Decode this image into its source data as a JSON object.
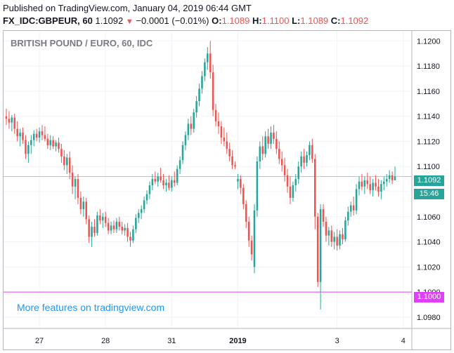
{
  "header": {
    "published": "Published on TradingView.com, January 04, 2019 06:44 GMT",
    "symbol": "FX_IDC:GBPEUR, 60",
    "last": "1.1092",
    "change_arrow": "▼",
    "change": "−0.0001 (−0.01%)",
    "open_label": "O:",
    "open": "1.1089",
    "high_label": "H:",
    "high": "1.1100",
    "low_label": "L:",
    "low": "1.1089",
    "close_label": "C:",
    "close": "1.1092"
  },
  "watermark": "More features on tradingview.com",
  "price_tags": {
    "last": "1.1092",
    "countdown": "15:46",
    "level": "1.1000"
  },
  "colors": {
    "up": "#26a69a",
    "down": "#ef5350",
    "last_line": "#26a69a",
    "level_line": "#e040fb",
    "grid": "#f0f3fa",
    "axis_text": "#131722"
  },
  "chart_data": {
    "type": "candlestick",
    "title": "BRITISH POUND / EURO, 60, IDC",
    "ylim": [
      1.0971,
      1.1208
    ],
    "y_ticks": [
      "1.1200",
      "1.1180",
      "1.1160",
      "1.1140",
      "1.1120",
      "1.1100",
      "1.1080",
      "1.1060",
      "1.1040",
      "1.1020",
      "1.1000",
      "1.0980"
    ],
    "x_ticks": [
      {
        "label": "27",
        "i": 12,
        "bold": false
      },
      {
        "label": "28",
        "i": 36,
        "bold": false
      },
      {
        "label": "31",
        "i": 60,
        "bold": false
      },
      {
        "label": "2019",
        "i": 84,
        "bold": true
      },
      {
        "label": "3",
        "i": 120,
        "bold": false
      },
      {
        "label": "4",
        "i": 144,
        "bold": false
      }
    ],
    "last_price": 1.1092,
    "level_line": 1.1,
    "ohlc": [
      [
        1.114,
        1.1146,
        1.1133,
        1.1138
      ],
      [
        1.1138,
        1.1144,
        1.113,
        1.1135
      ],
      [
        1.1135,
        1.1141,
        1.1128,
        1.1139
      ],
      [
        1.1139,
        1.1142,
        1.1126,
        1.113
      ],
      [
        1.113,
        1.1136,
        1.112,
        1.1124
      ],
      [
        1.1124,
        1.113,
        1.1116,
        1.1127
      ],
      [
        1.1127,
        1.1131,
        1.1118,
        1.1121
      ],
      [
        1.1121,
        1.1125,
        1.1106,
        1.111
      ],
      [
        1.111,
        1.112,
        1.1103,
        1.1117
      ],
      [
        1.1117,
        1.1125,
        1.111,
        1.1121
      ],
      [
        1.1121,
        1.1129,
        1.1116,
        1.1126
      ],
      [
        1.1126,
        1.113,
        1.112,
        1.1123
      ],
      [
        1.1123,
        1.1131,
        1.1119,
        1.1128
      ],
      [
        1.1128,
        1.1133,
        1.1121,
        1.1125
      ],
      [
        1.1125,
        1.1132,
        1.112,
        1.1122
      ],
      [
        1.1122,
        1.1126,
        1.1114,
        1.1117
      ],
      [
        1.1117,
        1.1125,
        1.1113,
        1.1121
      ],
      [
        1.1121,
        1.1124,
        1.1114,
        1.1116
      ],
      [
        1.1116,
        1.1121,
        1.1112,
        1.1119
      ],
      [
        1.1119,
        1.1123,
        1.1111,
        1.1114
      ],
      [
        1.1114,
        1.1118,
        1.1103,
        1.1108
      ],
      [
        1.1108,
        1.1113,
        1.1097,
        1.1101
      ],
      [
        1.1101,
        1.111,
        1.1094,
        1.1107
      ],
      [
        1.1107,
        1.1112,
        1.109,
        1.1095
      ],
      [
        1.1095,
        1.1101,
        1.1078,
        1.1084
      ],
      [
        1.1084,
        1.1092,
        1.1074,
        1.109
      ],
      [
        1.109,
        1.1094,
        1.107,
        1.1075
      ],
      [
        1.1075,
        1.108,
        1.1062,
        1.1066
      ],
      [
        1.1066,
        1.1076,
        1.106,
        1.1072
      ],
      [
        1.1072,
        1.1075,
        1.1054,
        1.1058
      ],
      [
        1.1058,
        1.1061,
        1.1039,
        1.1044
      ],
      [
        1.1044,
        1.1056,
        1.1036,
        1.1052
      ],
      [
        1.1052,
        1.1058,
        1.1044,
        1.1047
      ],
      [
        1.1047,
        1.1064,
        1.1045,
        1.1061
      ],
      [
        1.1061,
        1.1066,
        1.1054,
        1.1057
      ],
      [
        1.1057,
        1.1063,
        1.1051,
        1.106
      ],
      [
        1.106,
        1.1064,
        1.1052,
        1.1055
      ],
      [
        1.1055,
        1.1059,
        1.1046,
        1.1049
      ],
      [
        1.1049,
        1.1056,
        1.1046,
        1.1053
      ],
      [
        1.1053,
        1.1057,
        1.1047,
        1.105
      ],
      [
        1.105,
        1.1059,
        1.1047,
        1.1056
      ],
      [
        1.1056,
        1.106,
        1.1049,
        1.1052
      ],
      [
        1.1052,
        1.1056,
        1.1046,
        1.1049
      ],
      [
        1.1049,
        1.1054,
        1.1045,
        1.1051
      ],
      [
        1.1051,
        1.1055,
        1.104,
        1.1044
      ],
      [
        1.1044,
        1.1048,
        1.1036,
        1.1041
      ],
      [
        1.1041,
        1.1053,
        1.1039,
        1.105
      ],
      [
        1.105,
        1.1062,
        1.1047,
        1.1059
      ],
      [
        1.1059,
        1.1066,
        1.1055,
        1.1063
      ],
      [
        1.1063,
        1.1069,
        1.1058,
        1.1066
      ],
      [
        1.1066,
        1.1076,
        1.1063,
        1.1073
      ],
      [
        1.1073,
        1.1081,
        1.107,
        1.1078
      ],
      [
        1.1078,
        1.1088,
        1.1074,
        1.1085
      ],
      [
        1.1085,
        1.1094,
        1.1081,
        1.109
      ],
      [
        1.109,
        1.1096,
        1.1086,
        1.1088
      ],
      [
        1.1088,
        1.1095,
        1.1084,
        1.1092
      ],
      [
        1.1092,
        1.1099,
        1.1087,
        1.1089
      ],
      [
        1.1089,
        1.1094,
        1.1082,
        1.1085
      ],
      [
        1.1085,
        1.109,
        1.108,
        1.1087
      ],
      [
        1.1087,
        1.1093,
        1.1081,
        1.1083
      ],
      [
        1.1083,
        1.1092,
        1.108,
        1.1089
      ],
      [
        1.1089,
        1.1096,
        1.1084,
        1.1087
      ],
      [
        1.1087,
        1.1101,
        1.1085,
        1.1098
      ],
      [
        1.1098,
        1.1108,
        1.1094,
        1.1105
      ],
      [
        1.1105,
        1.112,
        1.1102,
        1.1117
      ],
      [
        1.1117,
        1.1128,
        1.1113,
        1.1125
      ],
      [
        1.1125,
        1.1138,
        1.1121,
        1.1134
      ],
      [
        1.1134,
        1.114,
        1.1125,
        1.113
      ],
      [
        1.113,
        1.1146,
        1.1127,
        1.1143
      ],
      [
        1.1143,
        1.1156,
        1.1139,
        1.1152
      ],
      [
        1.1152,
        1.1166,
        1.1148,
        1.1162
      ],
      [
        1.1162,
        1.1176,
        1.1158,
        1.1172
      ],
      [
        1.1172,
        1.1186,
        1.1168,
        1.1183
      ],
      [
        1.1183,
        1.1195,
        1.1177,
        1.119
      ],
      [
        1.119,
        1.12,
        1.117,
        1.1175
      ],
      [
        1.1175,
        1.1181,
        1.114,
        1.1145
      ],
      [
        1.1145,
        1.115,
        1.1132,
        1.1136
      ],
      [
        1.1136,
        1.1143,
        1.1126,
        1.1132
      ],
      [
        1.1132,
        1.1136,
        1.1118,
        1.1123
      ],
      [
        1.1123,
        1.1131,
        1.1116,
        1.112
      ],
      [
        1.112,
        1.1127,
        1.111,
        1.1114
      ],
      [
        1.1114,
        1.1119,
        1.1104,
        1.1108
      ],
      [
        1.1108,
        1.1113,
        1.1098,
        1.1101
      ],
      [
        1.1101,
        1.1104,
        1.1098,
        1.11
      ],
      [
        1.1088,
        1.1094,
        1.1082,
        1.109
      ],
      [
        1.109,
        1.1093,
        1.1078,
        1.1083
      ],
      [
        1.1083,
        1.1086,
        1.1066,
        1.107
      ],
      [
        1.107,
        1.1073,
        1.1051,
        1.1056
      ],
      [
        1.1056,
        1.106,
        1.1036,
        1.1041
      ],
      [
        1.1041,
        1.1045,
        1.1025,
        1.103
      ],
      [
        1.102,
        1.107,
        1.1015,
        1.1065
      ],
      [
        1.1065,
        1.1108,
        1.106,
        1.1104
      ],
      [
        1.1104,
        1.112,
        1.1098,
        1.1116
      ],
      [
        1.1116,
        1.1124,
        1.1105,
        1.111
      ],
      [
        1.111,
        1.1128,
        1.1107,
        1.1124
      ],
      [
        1.1124,
        1.113,
        1.1114,
        1.1118
      ],
      [
        1.1118,
        1.1132,
        1.1114,
        1.1127
      ],
      [
        1.1127,
        1.1133,
        1.1118,
        1.1122
      ],
      [
        1.1122,
        1.1128,
        1.111,
        1.1114
      ],
      [
        1.1114,
        1.112,
        1.1102,
        1.1106
      ],
      [
        1.1106,
        1.1112,
        1.1096,
        1.1101
      ],
      [
        1.1101,
        1.1107,
        1.1088,
        1.1093
      ],
      [
        1.1093,
        1.1098,
        1.1079,
        1.1084
      ],
      [
        1.1084,
        1.1092,
        1.107,
        1.1075
      ],
      [
        1.1075,
        1.1088,
        1.1072,
        1.1085
      ],
      [
        1.1085,
        1.1094,
        1.108,
        1.109
      ],
      [
        1.109,
        1.1104,
        1.1086,
        1.11
      ],
      [
        1.11,
        1.1112,
        1.1095,
        1.1108
      ],
      [
        1.1108,
        1.1114,
        1.1098,
        1.1103
      ],
      [
        1.1103,
        1.1112,
        1.11,
        1.1109
      ],
      [
        1.1109,
        1.112,
        1.1105,
        1.1117
      ],
      [
        1.1117,
        1.1122,
        1.1103,
        1.1106
      ],
      [
        1.1106,
        1.111,
        1.105,
        1.106
      ],
      [
        1.106,
        1.1063,
        1.1004,
        1.1008
      ],
      [
        1.1008,
        1.107,
        1.0986,
        1.1066
      ],
      [
        1.1066,
        1.107,
        1.1052,
        1.1056
      ],
      [
        1.1056,
        1.106,
        1.104,
        1.1045
      ],
      [
        1.1045,
        1.1052,
        1.1037,
        1.1049
      ],
      [
        1.1049,
        1.1053,
        1.1036,
        1.104
      ],
      [
        1.104,
        1.1048,
        1.1034,
        1.1044
      ],
      [
        1.1044,
        1.105,
        1.1033,
        1.1037
      ],
      [
        1.1037,
        1.1049,
        1.1034,
        1.1046
      ],
      [
        1.1046,
        1.1051,
        1.1038,
        1.1042
      ],
      [
        1.1042,
        1.106,
        1.104,
        1.1057
      ],
      [
        1.1057,
        1.1068,
        1.1053,
        1.1064
      ],
      [
        1.1064,
        1.1072,
        1.106,
        1.1069
      ],
      [
        1.1069,
        1.1076,
        1.1061,
        1.1065
      ],
      [
        1.1065,
        1.1086,
        1.1062,
        1.1082
      ],
      [
        1.1082,
        1.1092,
        1.1077,
        1.1088
      ],
      [
        1.1088,
        1.1094,
        1.1081,
        1.1084
      ],
      [
        1.1084,
        1.1092,
        1.1078,
        1.1089
      ],
      [
        1.1089,
        1.1095,
        1.1082,
        1.1086
      ],
      [
        1.1086,
        1.1092,
        1.1078,
        1.1081
      ],
      [
        1.1081,
        1.109,
        1.1076,
        1.1087
      ],
      [
        1.1087,
        1.1093,
        1.1081,
        1.1084
      ],
      [
        1.1084,
        1.109,
        1.1076,
        1.108
      ],
      [
        1.108,
        1.1089,
        1.1074,
        1.1086
      ],
      [
        1.1086,
        1.1092,
        1.1081,
        1.1088
      ],
      [
        1.1088,
        1.1094,
        1.1084,
        1.109
      ],
      [
        1.109,
        1.1097,
        1.1087,
        1.1093
      ],
      [
        1.1093,
        1.1096,
        1.1086,
        1.1089
      ],
      [
        1.1089,
        1.11,
        1.1089,
        1.1092
      ]
    ]
  }
}
